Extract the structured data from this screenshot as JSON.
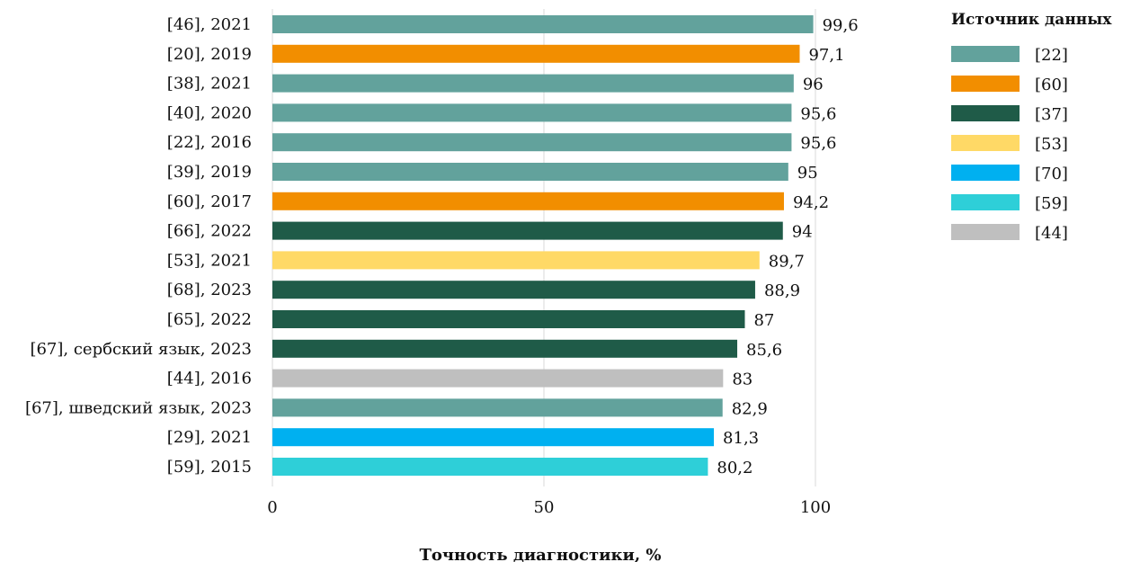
{
  "chart_data": {
    "type": "bar",
    "orientation": "horizontal",
    "categories": [
      "[46], 2021",
      "[20], 2019",
      "[38], 2021",
      "[40], 2020",
      "[22], 2016",
      "[39], 2019",
      "[60], 2017",
      "[66], 2022",
      "[53], 2021",
      "[68], 2023",
      "[65], 2022",
      "[67], сербский язык, 2023",
      "[44], 2016",
      "[67], шведский язык, 2023",
      "[29], 2021",
      "[59], 2015"
    ],
    "values": [
      99.6,
      97.1,
      96,
      95.6,
      95.6,
      95,
      94.2,
      94,
      89.7,
      88.9,
      87,
      85.6,
      83,
      82.9,
      81.3,
      80.2
    ],
    "value_labels": [
      "99,6",
      "97,1",
      "96",
      "95,6",
      "95,6",
      "95",
      "94,2",
      "94",
      "89,7",
      "88,9",
      "87",
      "85,6",
      "83",
      "82,9",
      "81,3",
      "80,2"
    ],
    "bar_groups": [
      "[22]",
      "[60]",
      "[22]",
      "[22]",
      "[22]",
      "[22]",
      "[60]",
      "[37]",
      "[53]",
      "[37]",
      "[37]",
      "[37]",
      "[44]",
      "[22]",
      "[70]",
      "[59]"
    ],
    "xlabel": "Точность диагностики, %",
    "ylabel": "",
    "xlim": [
      0,
      100
    ],
    "x_ticks": [
      0,
      50,
      100
    ],
    "x_tick_labels": [
      "0",
      "50",
      "100"
    ],
    "grid": "vertical",
    "legend": {
      "title": "Источник данных",
      "placement": "right",
      "entries": [
        {
          "label": "[22]",
          "color": "#62a29c"
        },
        {
          "label": "[60]",
          "color": "#f28e00"
        },
        {
          "label": "[37]",
          "color": "#1f5b48"
        },
        {
          "label": "[53]",
          "color": "#ffd966"
        },
        {
          "label": "[70]",
          "color": "#00b0f0"
        },
        {
          "label": "[59]",
          "color": "#2ecfd8"
        },
        {
          "label": "[44]",
          "color": "#bfbfbf"
        }
      ]
    }
  }
}
